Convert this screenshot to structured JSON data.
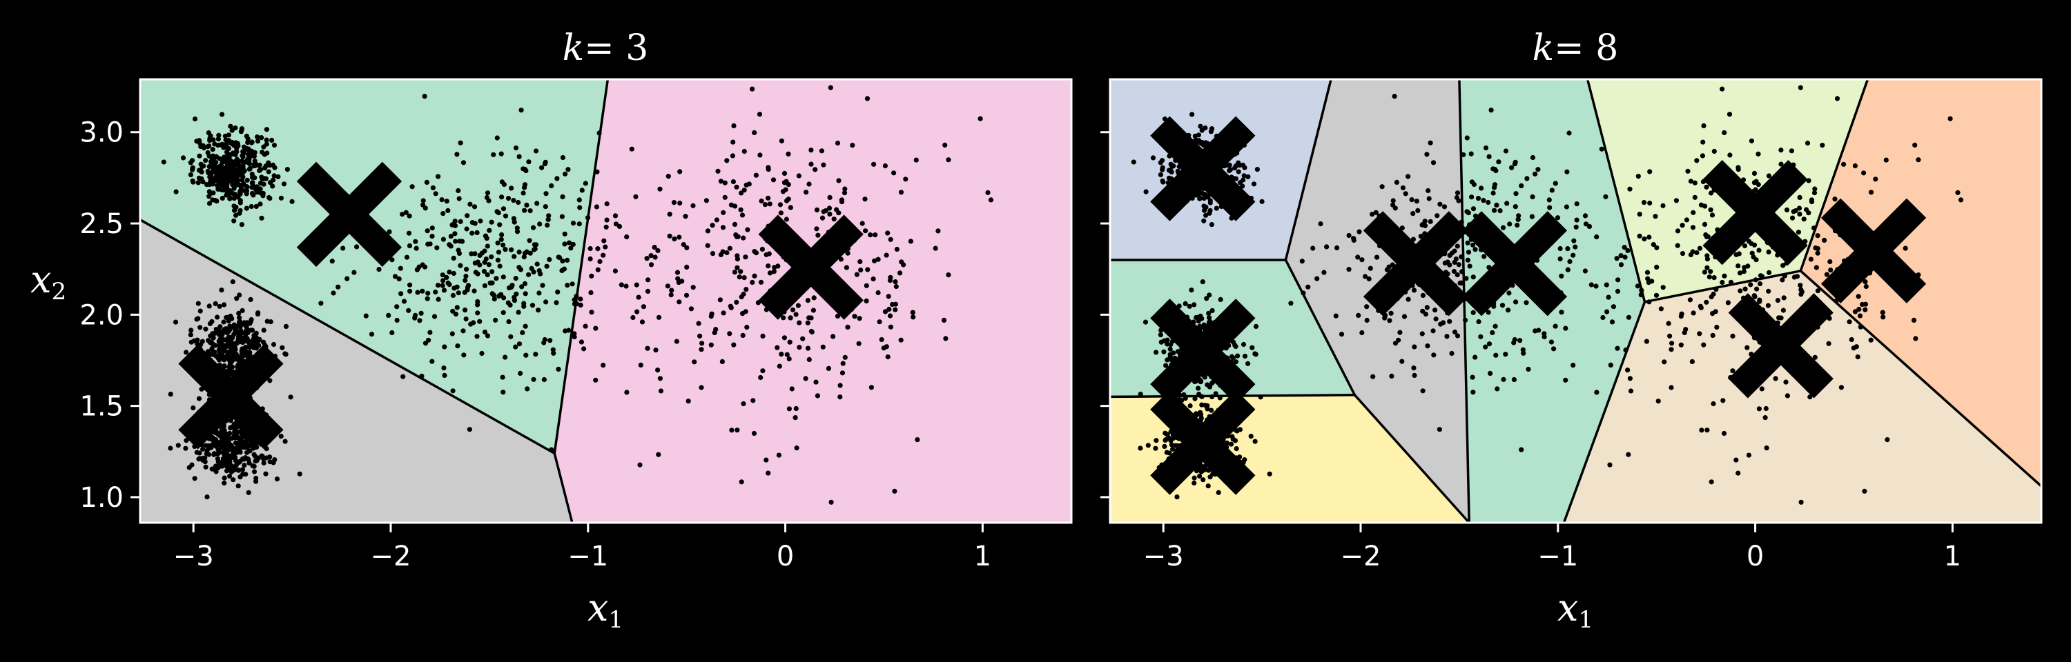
{
  "chart_data": [
    {
      "type": "scatter",
      "subtype": "kmeans-voronoi",
      "title": "k = 3",
      "title_var": "k",
      "title_eq": "= 3",
      "xlabel": "x1",
      "xlabel_var": "x",
      "xlabel_sub": "1",
      "ylabel": "x2",
      "ylabel_var": "x",
      "ylabel_sub": "2",
      "xlim": [
        -3.27,
        1.45
      ],
      "ylim": [
        0.86,
        3.29
      ],
      "xticks": [
        -3,
        -2,
        -1,
        0,
        1
      ],
      "xtick_labels": [
        "−3",
        "−2",
        "−1",
        "0",
        "1"
      ],
      "yticks": [
        1.0,
        1.5,
        2.0,
        2.5,
        3.0
      ],
      "ytick_labels": [
        "1.0",
        "1.5",
        "2.0",
        "2.5",
        "3.0"
      ],
      "grid": false,
      "centroids": [
        [
          -2.21,
          2.55
        ],
        [
          0.13,
          2.26
        ],
        [
          -2.81,
          1.55
        ]
      ],
      "regions": [
        {
          "color": "#b3e2cd",
          "polygon": [
            [
              -3.27,
              3.29
            ],
            [
              -0.9,
              3.29
            ],
            [
              -1.17,
              1.24
            ],
            [
              -3.27,
              2.52
            ]
          ]
        },
        {
          "color": "#f4cae4",
          "polygon": [
            [
              -0.9,
              3.29
            ],
            [
              1.45,
              3.29
            ],
            [
              1.45,
              0.86
            ],
            [
              -1.08,
              0.86
            ],
            [
              -1.17,
              1.24
            ]
          ]
        },
        {
          "color": "#cccccc",
          "polygon": [
            [
              -3.27,
              2.52
            ],
            [
              -1.17,
              1.24
            ],
            [
              -1.08,
              0.86
            ],
            [
              -3.27,
              0.86
            ]
          ]
        }
      ],
      "boundaries": [
        [
          [
            -0.9,
            3.29
          ],
          [
            -1.17,
            1.24
          ]
        ],
        [
          [
            -1.17,
            1.24
          ],
          [
            -1.08,
            0.86
          ]
        ],
        [
          [
            -3.27,
            2.52
          ],
          [
            -1.17,
            1.24
          ]
        ]
      ],
      "blobs": [
        {
          "center": [
            -2.8,
            2.8
          ],
          "std": [
            0.1,
            0.1
          ],
          "n": 380
        },
        {
          "center": [
            -2.8,
            1.8
          ],
          "std": [
            0.1,
            0.12
          ],
          "n": 380
        },
        {
          "center": [
            -2.8,
            1.3
          ],
          "std": [
            0.1,
            0.1
          ],
          "n": 380
        },
        {
          "center": [
            -1.47,
            2.28
          ],
          "std": [
            0.33,
            0.28
          ],
          "n": 380
        },
        {
          "center": [
            0.0,
            2.25
          ],
          "std": [
            0.4,
            0.42
          ],
          "n": 380
        }
      ]
    },
    {
      "type": "scatter",
      "subtype": "kmeans-voronoi",
      "title": "k = 8",
      "title_var": "k",
      "title_eq": "= 8",
      "xlabel": "x1",
      "xlabel_var": "x",
      "xlabel_sub": "1",
      "xlim": [
        -3.27,
        1.45
      ],
      "ylim": [
        0.86,
        3.29
      ],
      "xticks": [
        -3,
        -2,
        -1,
        0,
        1
      ],
      "xtick_labels": [
        "−3",
        "−2",
        "−1",
        "0",
        "1"
      ],
      "yticks": [
        1.0,
        1.5,
        2.0,
        2.5,
        3.0
      ],
      "grid": false,
      "centroids": [
        [
          -2.8,
          2.8
        ],
        [
          -2.8,
          1.8
        ],
        [
          -2.8,
          1.3
        ],
        [
          -1.72,
          2.28
        ],
        [
          -1.22,
          2.28
        ],
        [
          0.0,
          2.56
        ],
        [
          0.6,
          2.35
        ],
        [
          0.13,
          1.83
        ]
      ],
      "regions": [
        {
          "color": "#cbd5e8",
          "polygon": [
            [
              -3.27,
              3.29
            ],
            [
              -2.15,
              3.29
            ],
            [
              -2.38,
              2.3
            ],
            [
              -3.27,
              2.3
            ]
          ]
        },
        {
          "color": "#b3e2cd",
          "polygon": [
            [
              -3.27,
              2.3
            ],
            [
              -2.38,
              2.3
            ],
            [
              -2.03,
              1.56
            ],
            [
              -3.27,
              1.55
            ]
          ]
        },
        {
          "color": "#fff2ae",
          "polygon": [
            [
              -3.27,
              1.55
            ],
            [
              -2.03,
              1.56
            ],
            [
              -1.45,
              0.86
            ],
            [
              -3.27,
              0.86
            ]
          ]
        },
        {
          "color": "#cccccc",
          "polygon": [
            [
              -2.15,
              3.29
            ],
            [
              -1.5,
              3.29
            ],
            [
              -1.45,
              0.86
            ],
            [
              -2.03,
              1.56
            ],
            [
              -2.38,
              2.3
            ]
          ]
        },
        {
          "color": "#b3e2cd",
          "polygon": [
            [
              -1.5,
              3.29
            ],
            [
              -0.85,
              3.29
            ],
            [
              -0.56,
              2.07
            ],
            [
              -0.97,
              0.86
            ],
            [
              -1.45,
              0.86
            ]
          ]
        },
        {
          "color": "#e6f5c9",
          "polygon": [
            [
              -0.85,
              3.29
            ],
            [
              0.57,
              3.29
            ],
            [
              0.23,
              2.24
            ],
            [
              -0.56,
              2.07
            ]
          ]
        },
        {
          "color": "#fdcdac",
          "polygon": [
            [
              0.57,
              3.29
            ],
            [
              1.45,
              3.29
            ],
            [
              1.45,
              1.06
            ],
            [
              0.23,
              2.24
            ]
          ]
        },
        {
          "color": "#f1e2cc",
          "polygon": [
            [
              -0.56,
              2.07
            ],
            [
              0.23,
              2.24
            ],
            [
              1.45,
              1.06
            ],
            [
              1.45,
              0.86
            ],
            [
              -0.97,
              0.86
            ]
          ]
        }
      ],
      "boundaries": [
        [
          [
            -3.27,
            2.3
          ],
          [
            -2.38,
            2.3
          ]
        ],
        [
          [
            -2.15,
            3.29
          ],
          [
            -2.38,
            2.3
          ]
        ],
        [
          [
            -2.38,
            2.3
          ],
          [
            -2.03,
            1.56
          ]
        ],
        [
          [
            -3.27,
            1.55
          ],
          [
            -2.03,
            1.56
          ]
        ],
        [
          [
            -2.03,
            1.56
          ],
          [
            -1.45,
            0.86
          ]
        ],
        [
          [
            -1.5,
            3.29
          ],
          [
            -1.45,
            0.86
          ]
        ],
        [
          [
            -0.85,
            3.29
          ],
          [
            -0.56,
            2.07
          ]
        ],
        [
          [
            -0.56,
            2.07
          ],
          [
            -0.97,
            0.86
          ]
        ],
        [
          [
            -0.56,
            2.07
          ],
          [
            0.23,
            2.24
          ]
        ],
        [
          [
            0.57,
            3.29
          ],
          [
            0.23,
            2.24
          ]
        ],
        [
          [
            0.23,
            2.24
          ],
          [
            1.45,
            1.06
          ]
        ]
      ],
      "blobs": [
        {
          "center": [
            -2.8,
            2.8
          ],
          "std": [
            0.1,
            0.1
          ],
          "n": 380
        },
        {
          "center": [
            -2.8,
            1.8
          ],
          "std": [
            0.1,
            0.12
          ],
          "n": 380
        },
        {
          "center": [
            -2.8,
            1.3
          ],
          "std": [
            0.1,
            0.1
          ],
          "n": 380
        },
        {
          "center": [
            -1.47,
            2.28
          ],
          "std": [
            0.33,
            0.28
          ],
          "n": 380
        },
        {
          "center": [
            0.0,
            2.25
          ],
          "std": [
            0.4,
            0.42
          ],
          "n": 380
        }
      ]
    }
  ]
}
